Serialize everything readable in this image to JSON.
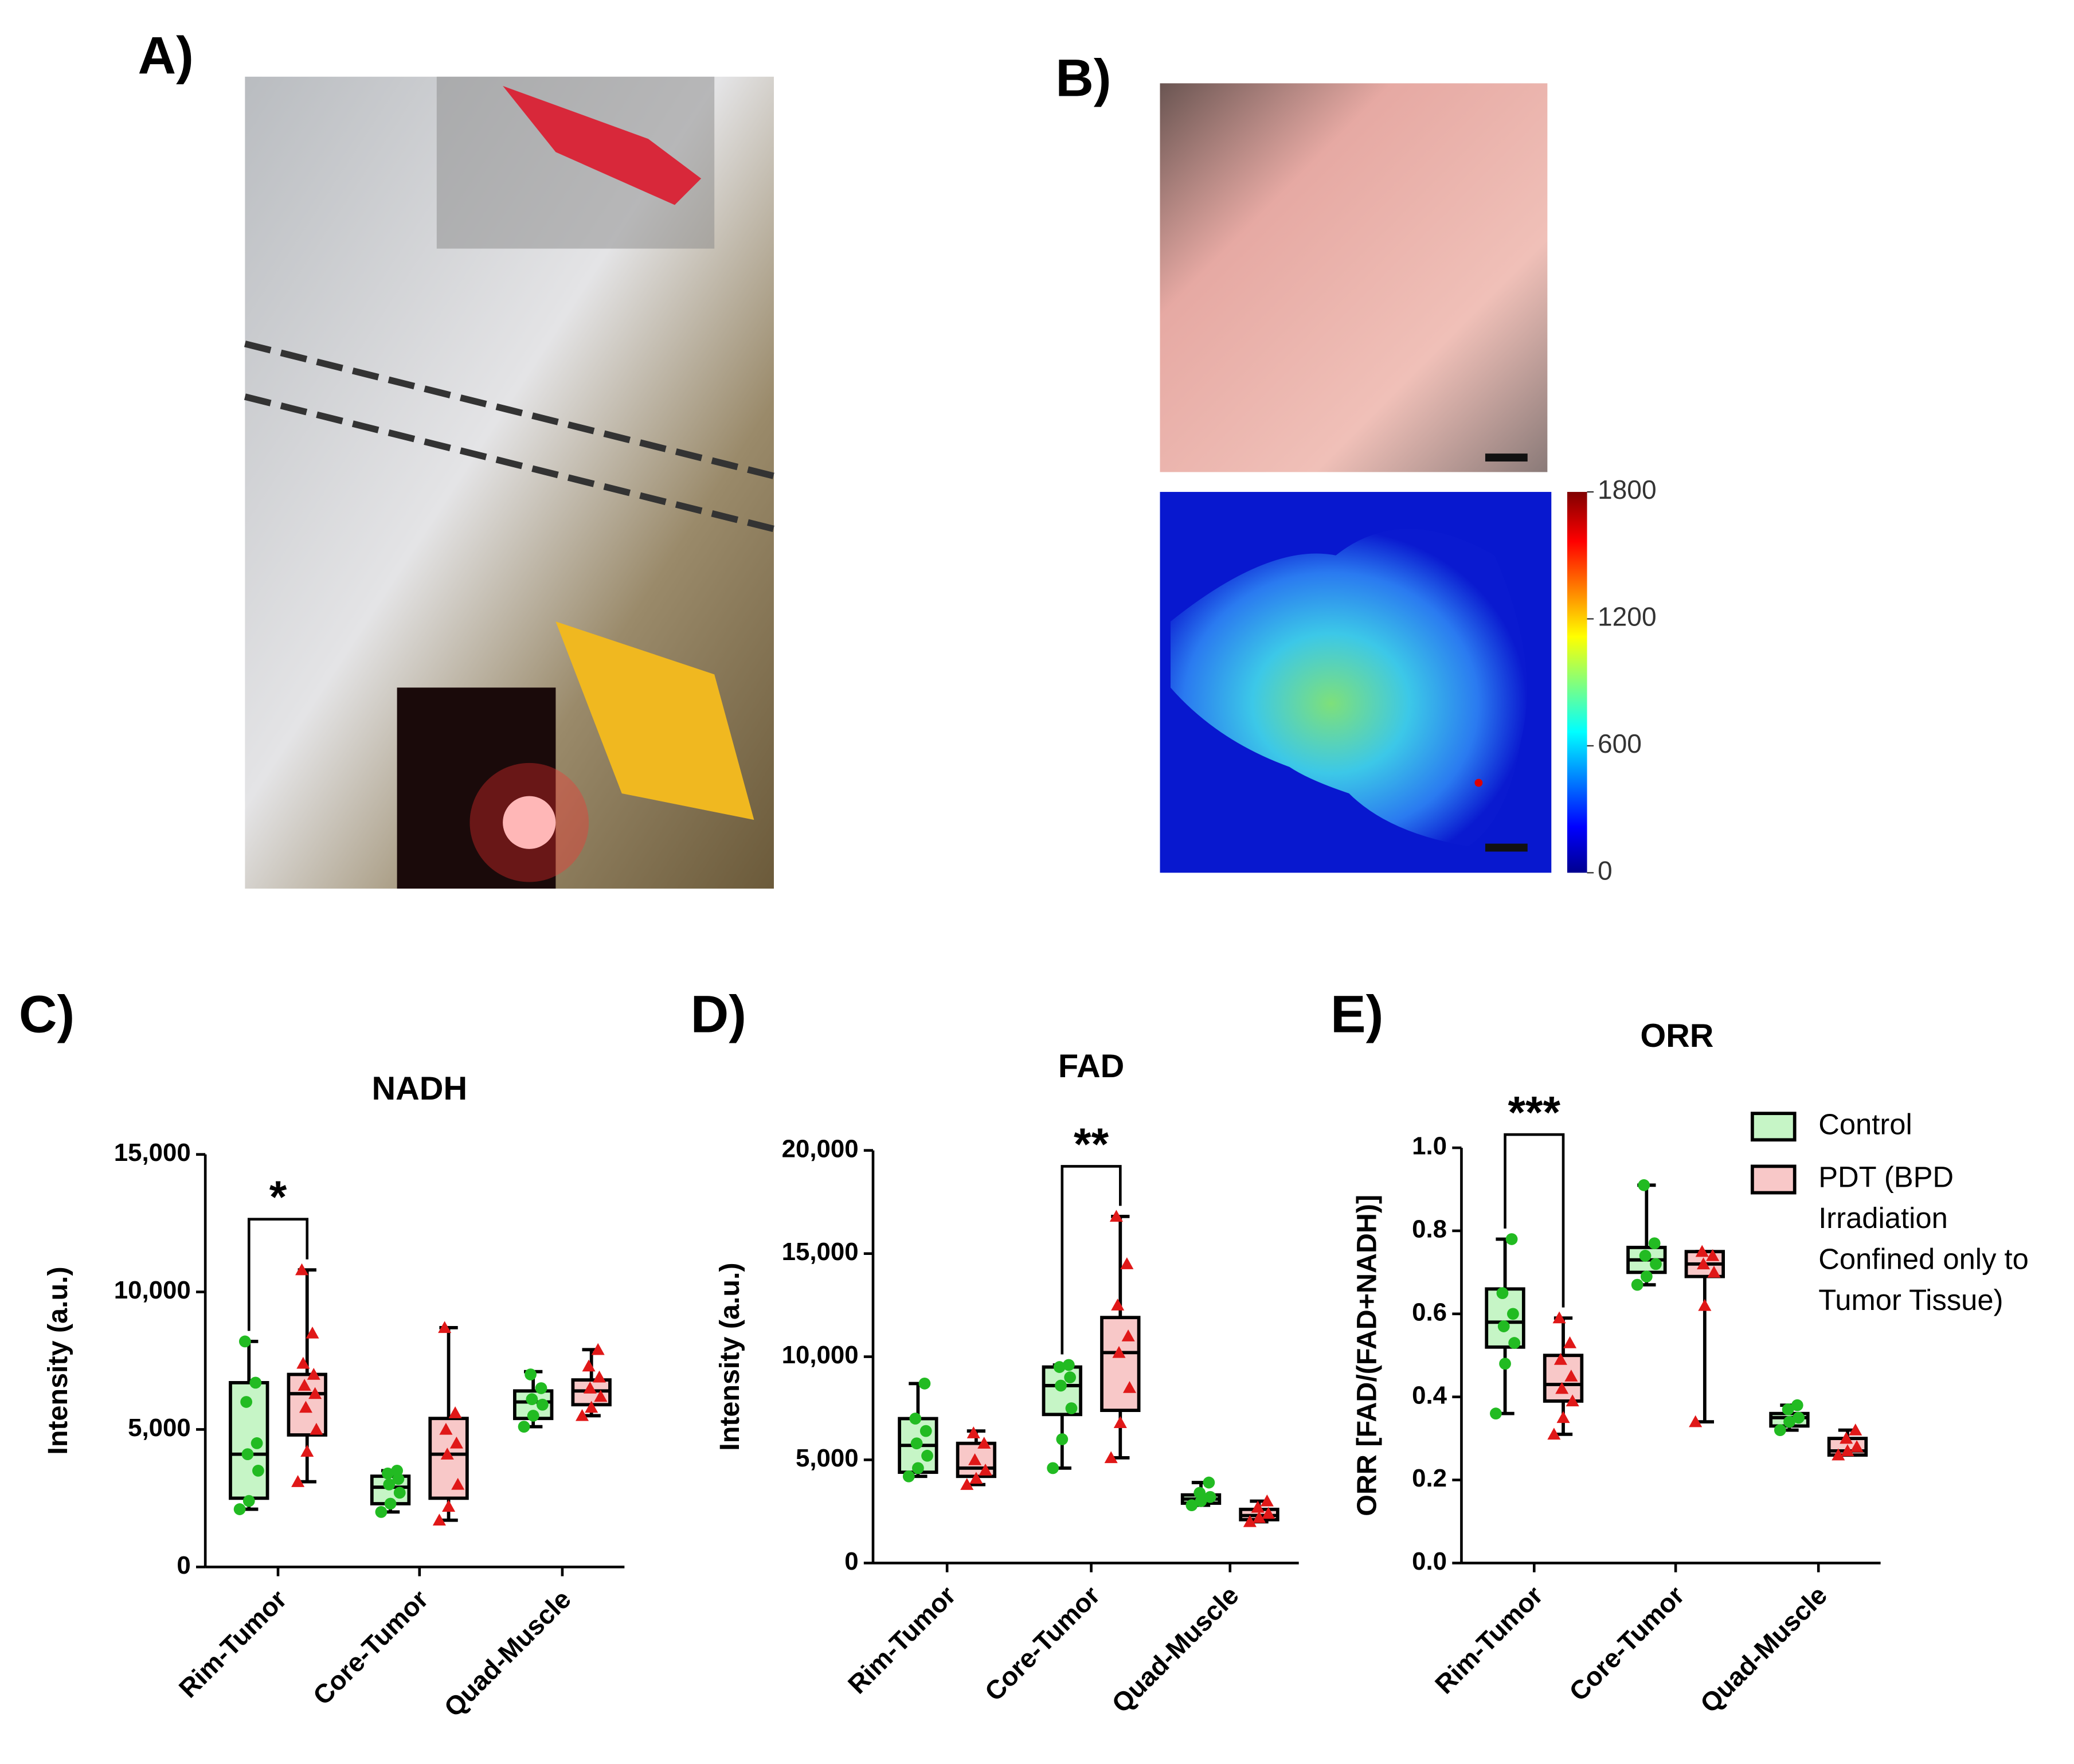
{
  "panel_labels": {
    "a": "A)",
    "b": "B)",
    "c": "C)",
    "d": "D)",
    "e": "E)"
  },
  "heatmap_colorbar": {
    "lim": [
      0,
      1800
    ],
    "ticks": [
      0,
      600,
      1200,
      1800
    ]
  },
  "chart_data": [
    {
      "type": "box",
      "title": "NADH",
      "ylabel": "Intensity (a.u.)",
      "categories": [
        "Rim-Tumor",
        "Core-Tumor",
        "Quad-Muscle"
      ],
      "ylim": [
        0,
        15000
      ],
      "yticks": [
        0,
        {
          "value": 5000,
          "label": "5,000"
        },
        {
          "value": 10000,
          "label": "10,000"
        },
        {
          "value": 15000,
          "label": "15,000"
        }
      ],
      "legend": false,
      "annotations": [
        {
          "text": "*"
        }
      ],
      "series": [
        {
          "name": "Control",
          "color": "#c6f5c6",
          "edge": "#000",
          "point_color": "#22bb22",
          "boxes": [
            {
              "min": 2100,
              "q1": 2500,
              "median": 4100,
              "q3": 6700,
              "max": 8200
            },
            {
              "min": 2000,
              "q1": 2300,
              "median": 2900,
              "q3": 3300,
              "max": 3500
            },
            {
              "min": 5100,
              "q1": 5400,
              "median": 6000,
              "q3": 6400,
              "max": 7100
            }
          ],
          "points": [
            [
              2100,
              2400,
              3500,
              4100,
              4500,
              6000,
              6700,
              8200
            ],
            [
              2000,
              2300,
              2700,
              3000,
              3200,
              3400,
              3500
            ],
            [
              5100,
              5500,
              5900,
              6100,
              6500,
              7000
            ]
          ]
        },
        {
          "name": "PDT (BPD Irradiation Confined only to Tumor Tissue)",
          "color": "#f8c8c8",
          "edge": "#000",
          "point_color": "#e01818",
          "boxes": [
            {
              "min": 3100,
              "q1": 4800,
              "median": 6300,
              "q3": 7000,
              "max": 10800
            },
            {
              "min": 1700,
              "q1": 2500,
              "median": 4100,
              "q3": 5400,
              "max": 8700
            },
            {
              "min": 5500,
              "q1": 5900,
              "median": 6400,
              "q3": 6800,
              "max": 7900
            }
          ],
          "points": [
            [
              3100,
              4200,
              5000,
              5800,
              6300,
              6600,
              7000,
              7400,
              8500,
              10800
            ],
            [
              1700,
              2200,
              3000,
              4100,
              4500,
              5000,
              5600,
              8700
            ],
            [
              5500,
              5800,
              6200,
              6500,
              6900,
              7300,
              7900
            ]
          ]
        }
      ]
    },
    {
      "type": "box",
      "title": "FAD",
      "ylabel": "Intensity (a.u.)",
      "categories": [
        "Rim-Tumor",
        "Core-Tumor",
        "Quad-Muscle"
      ],
      "ylim": [
        0,
        20000
      ],
      "yticks": [
        0,
        {
          "value": 5000,
          "label": "5,000"
        },
        {
          "value": 10000,
          "label": "10,000"
        },
        {
          "value": 15000,
          "label": "15,000"
        },
        {
          "value": 20000,
          "label": "20,000"
        }
      ],
      "legend": false,
      "annotations": [
        {
          "text": "**"
        }
      ],
      "series": [
        {
          "name": "Control",
          "color": "#c6f5c6",
          "edge": "#000",
          "point_color": "#22bb22",
          "boxes": [
            {
              "min": 4200,
              "q1": 4400,
              "median": 5700,
              "q3": 7000,
              "max": 8700
            },
            {
              "min": 4600,
              "q1": 7200,
              "median": 8600,
              "q3": 9500,
              "max": 9600
            },
            {
              "min": 2800,
              "q1": 2900,
              "median": 3100,
              "q3": 3300,
              "max": 3900
            }
          ],
          "points": [
            [
              4200,
              4600,
              5200,
              5800,
              6400,
              7000,
              8700
            ],
            [
              4600,
              6000,
              7500,
              8600,
              9000,
              9500,
              9600
            ],
            [
              2800,
              3000,
              3200,
              3400,
              3900
            ]
          ]
        },
        {
          "name": "PDT (BPD Irradiation Confined only to Tumor Tissue)",
          "color": "#f8c8c8",
          "edge": "#000",
          "point_color": "#e01818",
          "boxes": [
            {
              "min": 3800,
              "q1": 4200,
              "median": 4600,
              "q3": 5800,
              "max": 6400
            },
            {
              "min": 5100,
              "q1": 7400,
              "median": 10200,
              "q3": 11900,
              "max": 16800
            },
            {
              "min": 2000,
              "q1": 2100,
              "median": 2300,
              "q3": 2600,
              "max": 3000
            }
          ],
          "points": [
            [
              3800,
              4100,
              4500,
              5000,
              5800,
              6300
            ],
            [
              5100,
              6800,
              8500,
              10200,
              11000,
              12500,
              14500,
              16800
            ],
            [
              2000,
              2200,
              2400,
              2700,
              3000
            ]
          ]
        }
      ]
    },
    {
      "type": "box",
      "title": "ORR",
      "ylabel": "ORR [FAD/(FAD+NADH)]",
      "categories": [
        "Rim-Tumor",
        "Core-Tumor",
        "Quad-Muscle"
      ],
      "ylim": [
        0,
        1
      ],
      "yticks": [
        {
          "value": 0,
          "label": "0.0"
        },
        0.2,
        0.4,
        0.6,
        0.8,
        {
          "value": 1,
          "label": "1.0"
        }
      ],
      "legend": true,
      "annotations": [
        {
          "text": "***"
        }
      ],
      "series": [
        {
          "name": "Control",
          "color": "#c6f5c6",
          "edge": "#000",
          "point_color": "#22bb22",
          "boxes": [
            {
              "min": 0.36,
              "q1": 0.52,
              "median": 0.58,
              "q3": 0.66,
              "max": 0.78
            },
            {
              "min": 0.67,
              "q1": 0.7,
              "median": 0.73,
              "q3": 0.76,
              "max": 0.91
            },
            {
              "min": 0.32,
              "q1": 0.33,
              "median": 0.35,
              "q3": 0.36,
              "max": 0.38
            }
          ],
          "points": [
            [
              0.36,
              0.48,
              0.53,
              0.57,
              0.6,
              0.65,
              0.78
            ],
            [
              0.67,
              0.69,
              0.72,
              0.74,
              0.77,
              0.91
            ],
            [
              0.32,
              0.34,
              0.35,
              0.37,
              0.38
            ]
          ]
        },
        {
          "name": "PDT (BPD Irradiation Confined only to Tumor Tissue)",
          "color": "#f8c8c8",
          "edge": "#000",
          "point_color": "#e01818",
          "boxes": [
            {
              "min": 0.31,
              "q1": 0.39,
              "median": 0.43,
              "q3": 0.5,
              "max": 0.59
            },
            {
              "min": 0.34,
              "q1": 0.69,
              "median": 0.72,
              "q3": 0.75,
              "max": 0.75
            },
            {
              "min": 0.26,
              "q1": 0.26,
              "median": 0.27,
              "q3": 0.3,
              "max": 0.32
            }
          ],
          "points": [
            [
              0.31,
              0.35,
              0.39,
              0.42,
              0.45,
              0.49,
              0.53,
              0.59
            ],
            [
              0.34,
              0.62,
              0.7,
              0.72,
              0.74,
              0.75
            ],
            [
              0.26,
              0.27,
              0.28,
              0.3,
              0.32
            ]
          ]
        }
      ]
    }
  ]
}
